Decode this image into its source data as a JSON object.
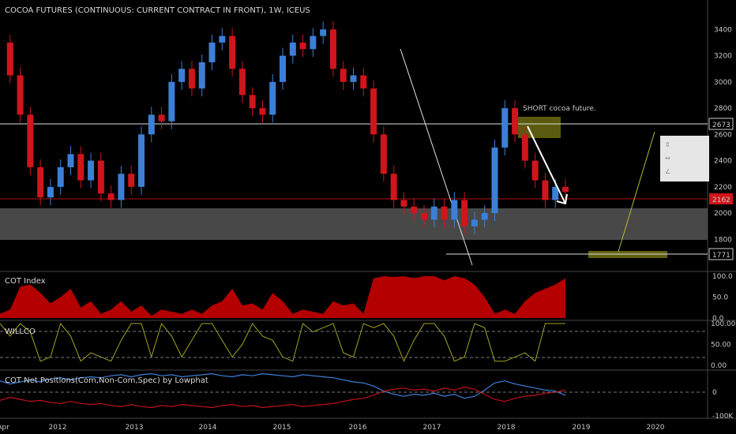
{
  "title": "COCOA FUTURES (CONTINUOUS: CURRENT CONTRACT IN FRONT), 1W, ICEUS",
  "annotation": "SHORT cocoa future.",
  "colors": {
    "bg": "#000000",
    "up": "#3d7fd6",
    "down": "#d0151c",
    "cot_fill": "#b50000",
    "willco": "#a3a31f",
    "net_blue": "#3d7fd6",
    "net_red": "#c0101a",
    "zone_gray": "#555555",
    "zone_olive": "#6b6b12"
  },
  "x_axis": {
    "labels": [
      "Apr",
      "2012",
      "2013",
      "2014",
      "2015",
      "2016",
      "2017",
      "2018",
      "2019",
      "2020"
    ]
  },
  "price_axis": {
    "ticks": [
      "3400",
      "3200",
      "3000",
      "2800",
      "2600",
      "2400",
      "2200",
      "2000",
      "1800"
    ]
  },
  "price_markers": {
    "level_upper": "2673",
    "last": "2162",
    "level_lower": "1771"
  },
  "panes": {
    "cot": {
      "title": "COT Index",
      "ticks": [
        "100.0",
        "50.0",
        "0.0"
      ]
    },
    "willco": {
      "title": "WILLCO",
      "ticks": [
        "100.00",
        "50.00",
        "0.00"
      ]
    },
    "net": {
      "title": "COT Net Positions(Com,Non-Com,Spec) by Lowphat",
      "ticks": [
        "0",
        "-100K"
      ]
    }
  },
  "chart_data": {
    "type": "candlestick",
    "title": "COCOA FUTURES (CONTINUOUS: CURRENT CONTRACT IN FRONT), 1W, ICEUS",
    "ylim": [
      1700,
      3480
    ],
    "x": [
      "2011.75",
      "2011.9",
      "2012.0",
      "2012.1",
      "2012.25",
      "2012.4",
      "2012.5",
      "2012.6",
      "2012.75",
      "2012.85",
      "2013.0",
      "2013.1",
      "2013.2",
      "2013.35",
      "2013.5",
      "2013.6",
      "2013.75",
      "2013.85",
      "2014.0",
      "2014.15",
      "2014.3",
      "2014.45",
      "2014.6",
      "2014.7",
      "2014.85",
      "2015.0",
      "2015.1",
      "2015.25",
      "2015.4",
      "2015.55",
      "2015.7",
      "2015.85",
      "2015.95",
      "2016.05",
      "2016.2",
      "2016.35",
      "2016.5",
      "2016.6",
      "2016.75",
      "2016.9",
      "2017.0",
      "2017.1",
      "2017.25",
      "2017.4",
      "2017.5",
      "2017.65",
      "2017.8",
      "2017.9",
      "2018.0",
      "2018.1",
      "2018.2",
      "2018.3",
      "2018.4",
      "2018.5",
      "2018.6",
      "2018.7",
      "2018.78"
    ],
    "close": [
      3300,
      3050,
      2750,
      2350,
      2120,
      2200,
      2350,
      2450,
      2250,
      2400,
      2150,
      2100,
      2300,
      2200,
      2600,
      2750,
      2700,
      3000,
      3100,
      2950,
      3150,
      3300,
      3350,
      3100,
      2900,
      2800,
      2750,
      3000,
      3200,
      3300,
      3250,
      3350,
      3400,
      3100,
      3000,
      3050,
      2950,
      2600,
      2300,
      2100,
      2050,
      2000,
      1950,
      2050,
      1950,
      2100,
      1900,
      1950,
      2000,
      2500,
      2800,
      2600,
      2400,
      2250,
      2100,
      2200,
      2162
    ],
    "cot_index": [
      10,
      20,
      75,
      80,
      60,
      35,
      50,
      70,
      25,
      40,
      10,
      20,
      40,
      15,
      30,
      5,
      20,
      15,
      10,
      20,
      10,
      30,
      40,
      70,
      30,
      35,
      20,
      60,
      40,
      10,
      20,
      15,
      10,
      40,
      30,
      35,
      10,
      95,
      100,
      98,
      100,
      95,
      100,
      100,
      90,
      100,
      95,
      80,
      50,
      10,
      20,
      10,
      40,
      60,
      70,
      80,
      95
    ],
    "willco": [
      100,
      70,
      100,
      80,
      10,
      20,
      100,
      70,
      10,
      30,
      20,
      10,
      60,
      100,
      100,
      20,
      100,
      70,
      20,
      60,
      100,
      100,
      60,
      20,
      50,
      100,
      70,
      60,
      20,
      10,
      100,
      80,
      90,
      100,
      30,
      20,
      100,
      90,
      100,
      70,
      10,
      60,
      100,
      100,
      70,
      10,
      20,
      100,
      90,
      10,
      10,
      20,
      30,
      10,
      100,
      100,
      100
    ],
    "net_blue": [
      0.55,
      0.4,
      0.5,
      0.6,
      0.5,
      0.65,
      0.7,
      0.6,
      0.7,
      0.75,
      0.7,
      0.8,
      0.85,
      0.75,
      0.85,
      0.9,
      0.8,
      0.85,
      0.75,
      0.8,
      0.85,
      0.9,
      0.8,
      0.75,
      0.85,
      0.8,
      0.9,
      0.85,
      0.8,
      0.75,
      0.85,
      0.8,
      0.75,
      0.7,
      0.6,
      0.5,
      0.45,
      0.3,
      0.05,
      -0.1,
      -0.2,
      -0.1,
      -0.15,
      -0.05,
      -0.2,
      -0.1,
      -0.3,
      -0.2,
      0.1,
      0.45,
      0.55,
      0.4,
      0.3,
      0.2,
      0.1,
      0.05,
      -0.15
    ],
    "net_red": [
      -0.4,
      -0.25,
      -0.35,
      -0.45,
      -0.4,
      -0.5,
      -0.55,
      -0.45,
      -0.55,
      -0.6,
      -0.55,
      -0.65,
      -0.7,
      -0.6,
      -0.7,
      -0.75,
      -0.65,
      -0.7,
      -0.6,
      -0.65,
      -0.7,
      -0.75,
      -0.65,
      -0.6,
      -0.7,
      -0.65,
      -0.75,
      -0.7,
      -0.65,
      -0.6,
      -0.7,
      -0.65,
      -0.6,
      -0.55,
      -0.45,
      -0.35,
      -0.3,
      -0.15,
      0.05,
      0.15,
      0.2,
      0.1,
      0.15,
      0.05,
      0.2,
      0.1,
      0.25,
      0.15,
      -0.1,
      -0.35,
      -0.45,
      -0.3,
      -0.2,
      -0.15,
      -0.05,
      0.0,
      0.1
    ]
  }
}
